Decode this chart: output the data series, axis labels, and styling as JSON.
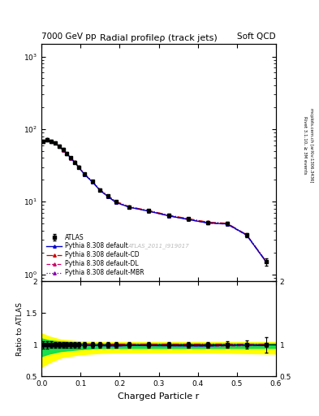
{
  "title_top_left": "7000 GeV pp",
  "title_top_right": "Soft QCD",
  "main_title": "Radial profileρ (track jets)",
  "watermark": "ATLAS_2011_I919017",
  "right_label_top": "Rivet 3.1.10, ≥ 3M events",
  "right_label_bot": "mcplots.cern.ch [arXiv:1306.3436]",
  "xlabel": "Charged Particle r",
  "ylabel_ratio": "Ratio to ATLAS",
  "xlim": [
    0.0,
    0.6
  ],
  "ylim_main": [
    0.8,
    1500
  ],
  "ylim_ratio": [
    0.5,
    2.0
  ],
  "r_values": [
    0.005,
    0.015,
    0.025,
    0.035,
    0.045,
    0.055,
    0.065,
    0.075,
    0.085,
    0.095,
    0.11,
    0.13,
    0.15,
    0.17,
    0.19,
    0.225,
    0.275,
    0.325,
    0.375,
    0.425,
    0.475,
    0.525,
    0.575
  ],
  "atlas_y": [
    68,
    72,
    68,
    65,
    58,
    52,
    46,
    40,
    35,
    30,
    24,
    19,
    14.5,
    12,
    10,
    8.5,
    7.5,
    6.5,
    5.8,
    5.2,
    5.0,
    3.5,
    1.5
  ],
  "atlas_yerr": [
    4,
    4,
    3.5,
    3,
    2.5,
    2.5,
    2,
    1.8,
    1.5,
    1.3,
    1.0,
    0.8,
    0.6,
    0.5,
    0.45,
    0.4,
    0.35,
    0.3,
    0.28,
    0.25,
    0.25,
    0.22,
    0.18
  ],
  "pythia_default_y": [
    67,
    71,
    67.5,
    64.5,
    57.8,
    51.8,
    46,
    40,
    34.8,
    30,
    23.8,
    18.8,
    14.3,
    11.8,
    9.8,
    8.4,
    7.4,
    6.4,
    5.7,
    5.1,
    4.95,
    3.48,
    1.48
  ],
  "pythia_cd_y": [
    68.5,
    72.5,
    68,
    65,
    58,
    52,
    46.2,
    40.2,
    35.2,
    30.2,
    24.2,
    19.1,
    14.6,
    12.1,
    10.1,
    8.55,
    7.55,
    6.55,
    5.85,
    5.25,
    5.05,
    3.52,
    1.51
  ],
  "pythia_dl_y": [
    67,
    71,
    67.5,
    64.5,
    57.5,
    51.5,
    45.8,
    39.8,
    34.8,
    29.8,
    23.8,
    18.8,
    14.3,
    11.8,
    9.8,
    8.4,
    7.4,
    6.4,
    5.7,
    5.1,
    4.9,
    3.45,
    1.48
  ],
  "pythia_mbr_y": [
    68,
    72,
    68,
    65,
    58,
    52,
    46,
    40,
    35,
    30,
    24,
    19,
    14.5,
    12,
    10,
    8.5,
    7.5,
    6.5,
    5.8,
    5.2,
    5.0,
    3.5,
    1.5
  ],
  "yellow_band_r": [
    0.0,
    0.02,
    0.05,
    0.1,
    0.15,
    0.2,
    0.3,
    0.4,
    0.5,
    0.6
  ],
  "yellow_band_upper": [
    1.18,
    1.13,
    1.08,
    1.05,
    1.04,
    1.04,
    1.04,
    1.04,
    1.04,
    1.04
  ],
  "yellow_band_lower": [
    0.65,
    0.72,
    0.8,
    0.85,
    0.87,
    0.88,
    0.88,
    0.88,
    0.87,
    0.86
  ],
  "green_band_r": [
    0.0,
    0.02,
    0.05,
    0.1,
    0.15,
    0.2,
    0.3,
    0.4,
    0.5,
    0.6
  ],
  "green_band_upper": [
    1.1,
    1.07,
    1.05,
    1.03,
    1.02,
    1.02,
    1.02,
    1.02,
    1.02,
    1.02
  ],
  "green_band_lower": [
    0.82,
    0.86,
    0.9,
    0.93,
    0.95,
    0.95,
    0.95,
    0.95,
    0.95,
    0.95
  ],
  "color_atlas": "#000000",
  "color_default": "#0000cc",
  "color_cd": "#cc0000",
  "color_dl": "#cc0066",
  "color_mbr": "#8800aa",
  "color_yellow": "#ffff00",
  "color_green": "#00dd55",
  "legend_entries": [
    "ATLAS",
    "Pythia 8.308 default",
    "Pythia 8.308 default-CD",
    "Pythia 8.308 default-DL",
    "Pythia 8.308 default-MBR"
  ]
}
